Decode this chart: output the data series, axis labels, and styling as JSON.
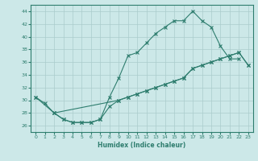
{
  "xlabel": "Humidex (Indice chaleur)",
  "bg_color": "#cce8e8",
  "grid_color": "#aacccc",
  "line_color": "#2e7d6e",
  "ylim": [
    25,
    45
  ],
  "xlim": [
    -0.5,
    23.5
  ],
  "yticks": [
    26,
    28,
    30,
    32,
    34,
    36,
    38,
    40,
    42,
    44
  ],
  "xticks": [
    0,
    1,
    2,
    3,
    4,
    5,
    6,
    7,
    8,
    9,
    10,
    11,
    12,
    13,
    14,
    15,
    16,
    17,
    18,
    19,
    20,
    21,
    22,
    23
  ],
  "line1_x": [
    0,
    1,
    2,
    3,
    4,
    5,
    6,
    7,
    8,
    9,
    10,
    11,
    12,
    13,
    14,
    15,
    16,
    17,
    18,
    19,
    20,
    21,
    22
  ],
  "line1_y": [
    30.5,
    29.5,
    28.0,
    27.0,
    26.5,
    26.5,
    26.5,
    27.0,
    30.5,
    33.5,
    37.0,
    37.5,
    39.0,
    40.5,
    41.5,
    42.5,
    42.5,
    44.0,
    42.5,
    41.5,
    38.5,
    36.5,
    36.5
  ],
  "line2_x": [
    0,
    2,
    9,
    10,
    11,
    12,
    13,
    14,
    15,
    16,
    17,
    18,
    19,
    20,
    21,
    22,
    23
  ],
  "line2_y": [
    30.5,
    28.0,
    30.0,
    30.5,
    31.0,
    31.5,
    32.0,
    32.5,
    33.0,
    33.5,
    35.0,
    35.5,
    36.0,
    36.5,
    37.0,
    37.5,
    35.5
  ],
  "line3_x": [
    2,
    3,
    4,
    5,
    6,
    7,
    8,
    9,
    10,
    11,
    12,
    13,
    14,
    15,
    16,
    17,
    18,
    19,
    20,
    21,
    22,
    23
  ],
  "line3_y": [
    28.0,
    27.0,
    26.5,
    26.5,
    26.5,
    27.0,
    29.0,
    30.0,
    30.5,
    31.0,
    31.5,
    32.0,
    32.5,
    33.0,
    33.5,
    35.0,
    35.5,
    36.0,
    36.5,
    37.0,
    37.5,
    35.5
  ]
}
